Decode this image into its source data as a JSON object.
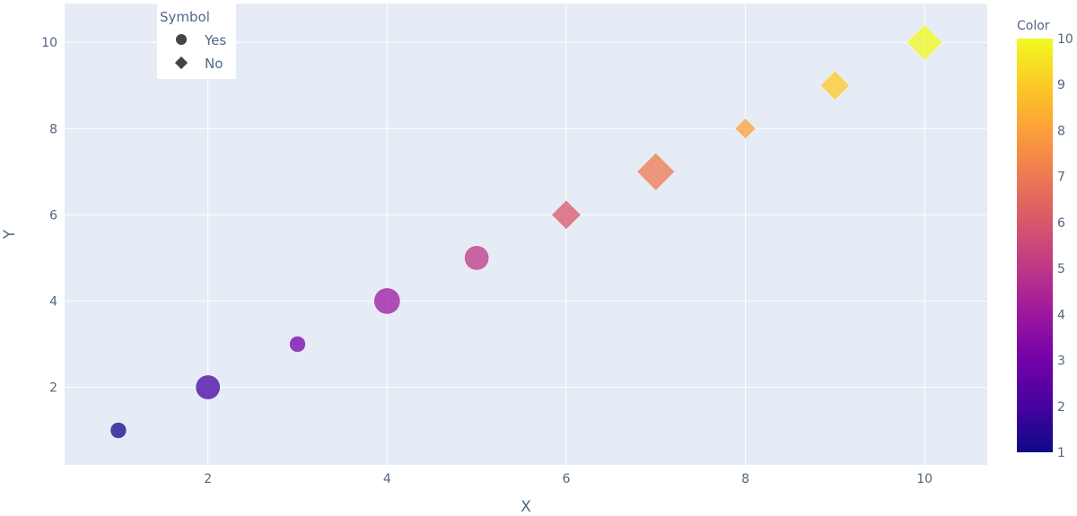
{
  "chart_data": {
    "type": "scatter",
    "xlabel": "X",
    "ylabel": "Y",
    "xlim": [
      0.4,
      10.7
    ],
    "ylim": [
      0.2,
      10.9
    ],
    "x_ticks": [
      2,
      4,
      6,
      8,
      10
    ],
    "y_ticks": [
      2,
      4,
      6,
      8,
      10
    ],
    "grid": true,
    "plot_background": "#e5ecf6",
    "legend": {
      "title": "Symbol",
      "placement": "top-left",
      "items": [
        {
          "label": "Yes",
          "symbol": "circle"
        },
        {
          "label": "No",
          "symbol": "diamond"
        }
      ]
    },
    "colorbar": {
      "title": "Color",
      "range": [
        1,
        10
      ],
      "ticks": [
        1,
        2,
        3,
        4,
        5,
        6,
        7,
        8,
        9,
        10
      ],
      "colorscale": [
        "#0d0887",
        "#46039f",
        "#7201a8",
        "#9c179e",
        "#bd3786",
        "#d8576b",
        "#ed7953",
        "#fb9f3a",
        "#fdca26",
        "#f0f921"
      ]
    },
    "points": [
      {
        "x": 1,
        "y": 1,
        "color": 1,
        "size": 3,
        "symbol": "Yes"
      },
      {
        "x": 2,
        "y": 2,
        "color": 2,
        "size": 7,
        "symbol": "Yes"
      },
      {
        "x": 3,
        "y": 3,
        "color": 3,
        "size": 3,
        "symbol": "Yes"
      },
      {
        "x": 4,
        "y": 4,
        "color": 4,
        "size": 8,
        "symbol": "Yes"
      },
      {
        "x": 5,
        "y": 5,
        "color": 5,
        "size": 7,
        "symbol": "Yes"
      },
      {
        "x": 6,
        "y": 6,
        "color": 6,
        "size": 6,
        "symbol": "No"
      },
      {
        "x": 7,
        "y": 7,
        "color": 7,
        "size": 10,
        "symbol": "No"
      },
      {
        "x": 8,
        "y": 8,
        "color": 8,
        "size": 3,
        "symbol": "No"
      },
      {
        "x": 9,
        "y": 9,
        "color": 9,
        "size": 6,
        "symbol": "No"
      },
      {
        "x": 10,
        "y": 10,
        "color": 10,
        "size": 9,
        "symbol": "No"
      }
    ]
  }
}
